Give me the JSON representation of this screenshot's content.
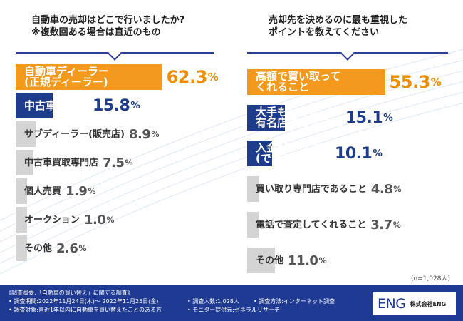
{
  "left_panel": {
    "title_line1": "自動車の売却はどこで行いましたか?",
    "title_line2": "※複数回ある場合は直近のもの"
  },
  "right_panel": {
    "title_line1": "売却先を決めるのに最も重視した",
    "title_line2": "ポイントを教えてください"
  },
  "chart_data": [
    {
      "type": "bar",
      "orientation": "horizontal",
      "title": "自動車の売却はどこで行いましたか? ※複数回ある場合は直近のもの",
      "unit": "%",
      "bars": [
        {
          "label_lines": [
            "自動車ディーラー",
            "(正規ディーラー)"
          ],
          "value": 62.3,
          "value_text": "62.3",
          "color": "orange"
        },
        {
          "label_lines": [
            "中古車販売店"
          ],
          "value": 15.8,
          "value_text": "15.8",
          "color": "navy"
        },
        {
          "label_lines": [
            "サブディーラー(販売店)"
          ],
          "value": 8.9,
          "value_text": "8.9",
          "color": "gray"
        },
        {
          "label_lines": [
            "中古車買取専門店"
          ],
          "value": 7.5,
          "value_text": "7.5",
          "color": "gray"
        },
        {
          "label_lines": [
            "個人売買"
          ],
          "value": 1.9,
          "value_text": "1.9",
          "color": "gray"
        },
        {
          "label_lines": [
            "オークション"
          ],
          "value": 1.0,
          "value_text": "1.0",
          "color": "gray"
        },
        {
          "label_lines": [
            "その他"
          ],
          "value": 2.6,
          "value_text": "2.6",
          "color": "gray"
        }
      ]
    },
    {
      "type": "bar",
      "orientation": "horizontal",
      "title": "売却先を決めるのに最も重視したポイントを教えてください",
      "unit": "%",
      "bars": [
        {
          "label_lines": [
            "高額で買い取って",
            "くれること"
          ],
          "value": 55.3,
          "value_text": "55.3",
          "color": "orange"
        },
        {
          "label_lines": [
            "大手もしくは",
            "有名店であること"
          ],
          "value": 15.1,
          "value_text": "15.1",
          "color": "navy"
        },
        {
          "label_lines": [
            "入金が早いこと",
            "(できれば即日)"
          ],
          "value": 10.1,
          "value_text": "10.1",
          "color": "navy"
        },
        {
          "label_lines": [
            "買い取り専門店であること"
          ],
          "value": 4.8,
          "value_text": "4.8",
          "color": "gray"
        },
        {
          "label_lines": [
            "電話で査定してくれること"
          ],
          "value": 3.7,
          "value_text": "3.7",
          "color": "gray"
        },
        {
          "label_lines": [
            "その他"
          ],
          "value": 11.0,
          "value_text": "11.0",
          "color": "gray"
        }
      ]
    }
  ],
  "percent_sign": "%",
  "sample_note": "(n=1,028人)",
  "footer": {
    "line1": "《調査概要:「自動車の買い替え」に関する調査》",
    "line2": "• 調査期間:2022年11月24日(木)～ 2022年11月25日(金)",
    "line3": "• 調査対象:直近1年以内に自動車を買い替えたことのある方",
    "line4": "• 調査人数:1,028人",
    "line5": "• 調査方法:インターネット調査",
    "line6": "• モニター提供元:ゼネラルリサーチ",
    "logo_text": "ENG",
    "company": "株式会社ENG"
  }
}
